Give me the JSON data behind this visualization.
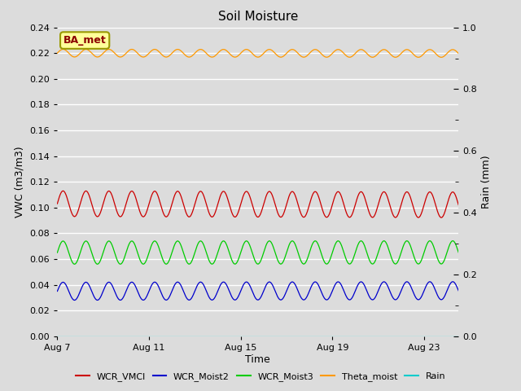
{
  "title": "Soil Moisture",
  "xlabel": "Time",
  "ylabel_left": "VWC (m3/m3)",
  "ylabel_right": "Rain (mm)",
  "ylim_left": [
    0.0,
    0.24
  ],
  "ylim_right": [
    0.0,
    1.0
  ],
  "yticks_left": [
    0.0,
    0.02,
    0.04,
    0.06,
    0.08,
    0.1,
    0.12,
    0.14,
    0.16,
    0.18,
    0.2,
    0.22,
    0.24
  ],
  "yticks_right": [
    0.0,
    0.2,
    0.4,
    0.6,
    0.8,
    1.0
  ],
  "yticks_right_minor": [
    0.1,
    0.3,
    0.5,
    0.7,
    0.9
  ],
  "xtick_days": [
    7,
    11,
    15,
    19,
    23
  ],
  "xtick_labels": [
    "Aug 7",
    "Aug 11",
    "Aug 15",
    "Aug 19",
    "Aug 23"
  ],
  "bg_color": "#dcdcdc",
  "series": {
    "WCR_VMCl": {
      "color": "#cc0000",
      "base": 0.103,
      "amplitude": 0.01,
      "period_days": 1.0,
      "trend": -5e-05
    },
    "WCR_Moist2": {
      "color": "#0000cc",
      "base": 0.035,
      "amplitude": 0.007,
      "period_days": 1.0,
      "trend": 2.5e-05
    },
    "WCR_Moist3": {
      "color": "#00cc00",
      "base": 0.065,
      "amplitude": 0.009,
      "period_days": 1.0,
      "trend": 1e-05
    },
    "Theta_moist": {
      "color": "#ff9900",
      "base": 0.22,
      "amplitude": 0.003,
      "period_days": 1.0,
      "trend": -1.5e-05
    },
    "Rain": {
      "color": "#00cccc",
      "base": 0.0,
      "amplitude": 0.0,
      "period_days": 1.0,
      "trend": 0.0
    }
  },
  "legend_labels": [
    "WCR_VMCl",
    "WCR_Moist2",
    "WCR_Moist3",
    "Theta_moist",
    "Rain"
  ],
  "legend_colors": [
    "#cc0000",
    "#0000cc",
    "#00cc00",
    "#ff9900",
    "#00cccc"
  ],
  "annotation_text": "BA_met",
  "annotation_bg": "#ffff99",
  "annotation_border": "#999900"
}
